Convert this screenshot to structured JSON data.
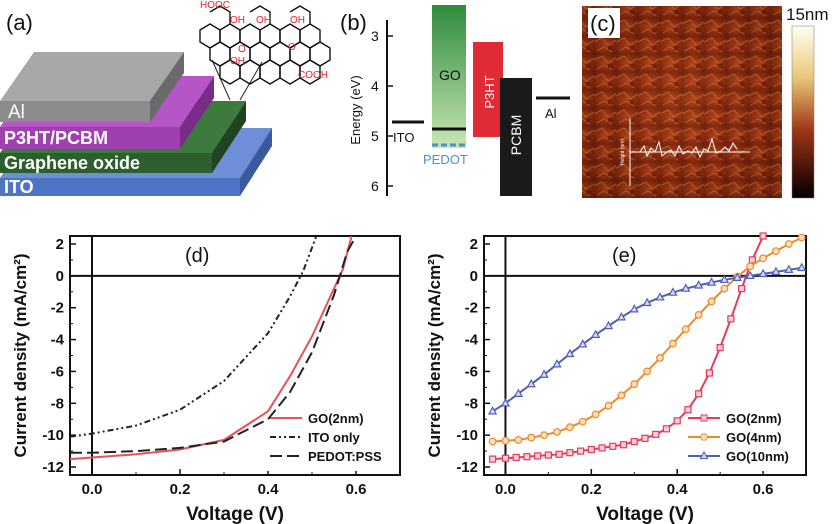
{
  "panel_a": {
    "label": "(a)",
    "layers": [
      "Al",
      "P3HT/PCBM",
      "Graphene oxide",
      "ITO"
    ],
    "molecule_groups": [
      "HOOC",
      "OH",
      "O",
      "OH",
      "O",
      "OH",
      "OH",
      "COOH"
    ],
    "colors": {
      "al": "#8c8c8c",
      "p3ht": "#a040b0",
      "go": "#2d5e2d",
      "ito": "#4f74c4"
    }
  },
  "panel_b": {
    "label": "(b)",
    "ylabel": "Energy (eV)",
    "ticks": [
      "3",
      "4",
      "5",
      "6"
    ],
    "levels": [
      {
        "name": "ITO",
        "energy": 4.7
      },
      {
        "name": "GO",
        "top": 2.3,
        "bottom": 5.0,
        "line": 4.9
      },
      {
        "name": "PEDOT",
        "energy": 5.2
      },
      {
        "name": "P3HT",
        "top": 3.1,
        "bottom": 5.0
      },
      {
        "name": "PCBM",
        "top": 3.8,
        "bottom": 6.1
      },
      {
        "name": "Al",
        "energy": 4.2
      }
    ]
  },
  "panel_c": {
    "label": "(c)",
    "scale_label": "15nm",
    "profile_ylabel": "Height (nm)"
  },
  "chart_data": [
    {
      "type": "line",
      "panel": "(d)",
      "xlabel": "Voltage (V)",
      "ylabel": "Current density (mA/cm²)",
      "xlim": [
        -0.05,
        0.7
      ],
      "ylim": [
        -12.5,
        2.5
      ],
      "xticks": [
        "0.0",
        "0.2",
        "0.4",
        "0.6"
      ],
      "yticks": [
        "2",
        "0",
        "-2",
        "-4",
        "-6",
        "-8",
        "-10",
        "-12"
      ],
      "series": [
        {
          "name": "GO(2nm)",
          "color": "#e8505b",
          "dash": "",
          "points": [
            [
              -0.05,
              -11.5
            ],
            [
              0.0,
              -11.4
            ],
            [
              0.1,
              -11.2
            ],
            [
              0.2,
              -10.9
            ],
            [
              0.3,
              -10.3
            ],
            [
              0.4,
              -8.5
            ],
            [
              0.45,
              -6.3
            ],
            [
              0.5,
              -3.8
            ],
            [
              0.55,
              -0.8
            ],
            [
              0.57,
              0.4
            ],
            [
              0.59,
              2.5
            ]
          ]
        },
        {
          "name": "ITO only",
          "color": "#222222",
          "dash": "6,3,2,3,2,3",
          "points": [
            [
              -0.05,
              -10.1
            ],
            [
              0.0,
              -9.9
            ],
            [
              0.1,
              -9.4
            ],
            [
              0.2,
              -8.4
            ],
            [
              0.3,
              -6.6
            ],
            [
              0.4,
              -3.6
            ],
            [
              0.45,
              -1.3
            ],
            [
              0.48,
              0.3
            ],
            [
              0.51,
              2.5
            ]
          ]
        },
        {
          "name": "PEDOT:PSS",
          "color": "#222222",
          "dash": "12,5",
          "points": [
            [
              -0.05,
              -11.1
            ],
            [
              0.0,
              -11.1
            ],
            [
              0.1,
              -11.0
            ],
            [
              0.2,
              -10.8
            ],
            [
              0.3,
              -10.4
            ],
            [
              0.4,
              -9.0
            ],
            [
              0.45,
              -7.3
            ],
            [
              0.5,
              -4.8
            ],
            [
              0.55,
              -1.2
            ],
            [
              0.58,
              1.5
            ],
            [
              0.6,
              2.5
            ]
          ]
        }
      ]
    },
    {
      "type": "line",
      "panel": "(e)",
      "xlabel": "Voltage (V)",
      "ylabel": "Current density (mA/cm²)",
      "xlim": [
        -0.05,
        0.7
      ],
      "ylim": [
        -12.5,
        2.5
      ],
      "xticks": [
        "0.0",
        "0.2",
        "0.4",
        "0.6"
      ],
      "yticks": [
        "2",
        "0",
        "-2",
        "-4",
        "-6",
        "-8",
        "-10",
        "-12"
      ],
      "series": [
        {
          "name": "GO(2nm)",
          "color": "#e83a5a",
          "marker": "square",
          "points": [
            [
              -0.03,
              -11.5
            ],
            [
              0.0,
              -11.45
            ],
            [
              0.025,
              -11.4
            ],
            [
              0.05,
              -11.35
            ],
            [
              0.075,
              -11.3
            ],
            [
              0.1,
              -11.25
            ],
            [
              0.125,
              -11.2
            ],
            [
              0.15,
              -11.1
            ],
            [
              0.175,
              -11.0
            ],
            [
              0.2,
              -10.9
            ],
            [
              0.225,
              -10.8
            ],
            [
              0.25,
              -10.7
            ],
            [
              0.275,
              -10.6
            ],
            [
              0.3,
              -10.4
            ],
            [
              0.325,
              -10.2
            ],
            [
              0.35,
              -9.95
            ],
            [
              0.375,
              -9.6
            ],
            [
              0.4,
              -9.1
            ],
            [
              0.425,
              -8.4
            ],
            [
              0.45,
              -7.4
            ],
            [
              0.475,
              -6.1
            ],
            [
              0.5,
              -4.5
            ],
            [
              0.525,
              -2.7
            ],
            [
              0.55,
              -0.8
            ],
            [
              0.575,
              1.0
            ],
            [
              0.6,
              2.5
            ]
          ]
        },
        {
          "name": "GO(4nm)",
          "color": "#f08a28",
          "marker": "circle",
          "points": [
            [
              -0.03,
              -10.4
            ],
            [
              0.0,
              -10.35
            ],
            [
              0.03,
              -10.3
            ],
            [
              0.06,
              -10.15
            ],
            [
              0.09,
              -10.0
            ],
            [
              0.12,
              -9.8
            ],
            [
              0.15,
              -9.5
            ],
            [
              0.18,
              -9.15
            ],
            [
              0.21,
              -8.7
            ],
            [
              0.24,
              -8.15
            ],
            [
              0.27,
              -7.5
            ],
            [
              0.3,
              -6.8
            ],
            [
              0.33,
              -6.0
            ],
            [
              0.36,
              -5.15
            ],
            [
              0.39,
              -4.25
            ],
            [
              0.42,
              -3.35
            ],
            [
              0.45,
              -2.45
            ],
            [
              0.48,
              -1.6
            ],
            [
              0.51,
              -0.8
            ],
            [
              0.54,
              -0.05
            ],
            [
              0.57,
              0.6
            ],
            [
              0.6,
              1.1
            ],
            [
              0.63,
              1.55
            ],
            [
              0.66,
              2.0
            ],
            [
              0.69,
              2.4
            ]
          ]
        },
        {
          "name": "GO(10nm)",
          "color": "#4f5eb8",
          "marker": "triangle",
          "points": [
            [
              -0.03,
              -8.5
            ],
            [
              0.0,
              -8.0
            ],
            [
              0.03,
              -7.4
            ],
            [
              0.06,
              -6.8
            ],
            [
              0.09,
              -6.2
            ],
            [
              0.12,
              -5.55
            ],
            [
              0.15,
              -4.9
            ],
            [
              0.18,
              -4.3
            ],
            [
              0.21,
              -3.7
            ],
            [
              0.24,
              -3.15
            ],
            [
              0.27,
              -2.6
            ],
            [
              0.3,
              -2.1
            ],
            [
              0.33,
              -1.7
            ],
            [
              0.36,
              -1.35
            ],
            [
              0.39,
              -1.05
            ],
            [
              0.42,
              -0.8
            ],
            [
              0.45,
              -0.6
            ],
            [
              0.48,
              -0.42
            ],
            [
              0.51,
              -0.25
            ],
            [
              0.54,
              -0.12
            ],
            [
              0.57,
              0.0
            ],
            [
              0.6,
              0.12
            ],
            [
              0.63,
              0.25
            ],
            [
              0.66,
              0.38
            ],
            [
              0.69,
              0.5
            ]
          ]
        }
      ]
    }
  ]
}
